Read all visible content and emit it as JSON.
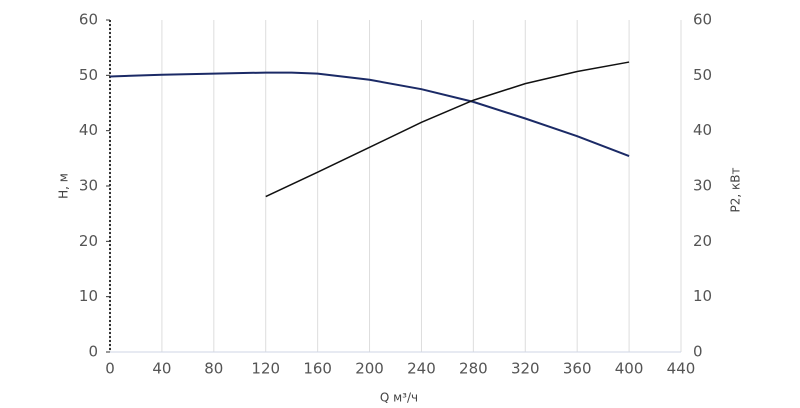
{
  "chart_data": {
    "type": "line",
    "x_label": "Q м³/ч",
    "y_label": "H, м",
    "y2_label": "P2, кВт",
    "xlim": [
      0,
      440
    ],
    "xticks": [
      0,
      40,
      80,
      120,
      160,
      200,
      240,
      280,
      320,
      360,
      400,
      440
    ],
    "ylim": [
      0,
      60
    ],
    "yticks": [
      0,
      10,
      20,
      30,
      40,
      50,
      60
    ],
    "y2lim": [
      0,
      60
    ],
    "y2ticks": [
      0,
      10,
      20,
      30,
      40,
      50,
      60
    ],
    "grid": true,
    "series": [
      {
        "color": "#1b2a66",
        "x": [
          0,
          40,
          80,
          120,
          140,
          160,
          200,
          240,
          280,
          320,
          360,
          400
        ],
        "values": [
          49.8,
          50.1,
          50.3,
          50.5,
          50.5,
          50.3,
          49.2,
          47.5,
          45.2,
          42.2,
          39,
          35.4
        ]
      },
      {
        "color": "#111111",
        "axis": "y2",
        "x": [
          120,
          160,
          200,
          240,
          280,
          320,
          360,
          400
        ],
        "values": [
          28.1,
          32.5,
          37,
          41.5,
          45.5,
          48.5,
          50.7,
          52.4
        ]
      }
    ]
  }
}
